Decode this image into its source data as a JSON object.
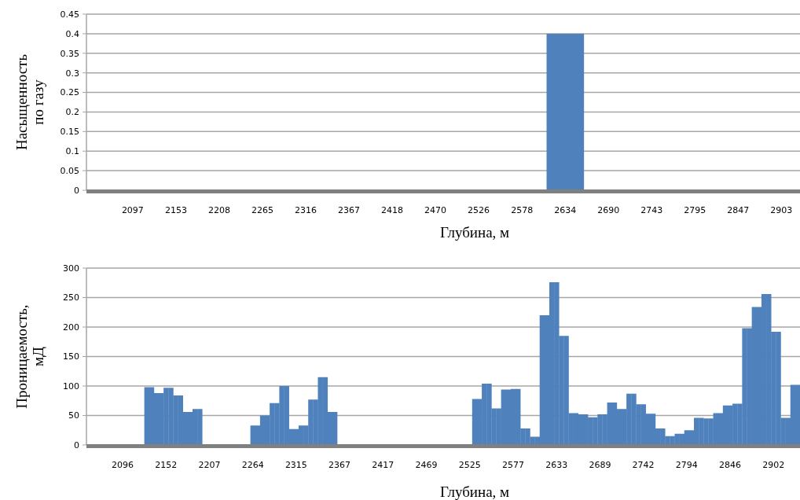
{
  "chart_data": [
    {
      "type": "bar",
      "ylabel": "Насыщенность\nпо газу",
      "xlabel": "Глубина, м",
      "grid": "y",
      "categories": [
        "2097",
        "2153",
        "2208",
        "2265",
        "2316",
        "2367",
        "2418",
        "2470",
        "2526",
        "2578",
        "2634",
        "2690",
        "2743",
        "2795",
        "2847",
        "2903"
      ],
      "values": [
        0,
        0,
        0,
        0,
        0,
        0,
        0,
        0,
        0,
        0,
        0.4,
        0,
        0,
        0,
        0,
        0
      ],
      "color": "#4f81bd",
      "ylim": [
        0,
        0.45
      ],
      "yticks": [
        0,
        0.05,
        0.1,
        0.15,
        0.2,
        0.25,
        0.3,
        0.35,
        0.4,
        0.45
      ]
    },
    {
      "type": "bar",
      "ylabel": "Проницаемость,\nмД",
      "xlabel": "Глубина, м",
      "grid": "y",
      "categories": [
        null,
        null,
        null,
        null,
        null,
        null,
        null,
        "2096",
        null,
        null,
        null,
        null,
        null,
        null,
        null,
        null,
        "2152",
        null,
        null,
        null,
        null,
        null,
        null,
        null,
        null,
        "2207",
        null,
        null,
        null,
        null,
        null,
        null,
        null,
        null,
        "2264",
        null,
        null,
        null,
        null,
        null,
        null,
        null,
        null,
        "2315",
        null,
        null,
        null,
        null,
        null,
        null,
        null,
        null,
        "2367",
        null,
        null,
        null,
        null,
        null,
        null,
        null,
        null,
        "2417",
        null,
        null,
        null,
        null,
        null,
        null,
        null,
        null,
        "2469",
        null,
        null,
        null,
        null,
        null,
        null,
        null,
        null,
        "2525",
        null,
        null,
        null,
        null,
        null,
        null,
        null,
        null,
        "2577",
        null,
        null,
        null,
        null,
        null,
        null,
        null,
        null,
        "2633",
        null,
        null,
        null,
        null,
        null,
        null,
        null,
        null,
        "2689",
        null,
        null,
        null,
        null,
        null,
        null,
        null,
        null,
        "2742",
        null,
        null,
        null,
        null,
        null,
        null,
        null,
        null,
        "2794",
        null,
        null,
        null,
        null,
        null,
        null,
        null,
        null,
        "2846",
        null,
        null,
        null,
        null,
        null,
        null,
        null,
        null,
        "2902",
        null,
        null,
        null,
        null,
        null
      ],
      "values": [
        0,
        0,
        0,
        0,
        0,
        0,
        0,
        0,
        0,
        0,
        0,
        0,
        98,
        98,
        88,
        88,
        97,
        97,
        84,
        84,
        56,
        56,
        61,
        61,
        0,
        0,
        0,
        0,
        0,
        0,
        0,
        0,
        0,
        0,
        33,
        33,
        50,
        50,
        71,
        71,
        100,
        100,
        27,
        27,
        33,
        33,
        77,
        77,
        115,
        115,
        56,
        56,
        0,
        0,
        0,
        0,
        0,
        0,
        0,
        0,
        0,
        0,
        0,
        0,
        0,
        0,
        0,
        0,
        0,
        0,
        0,
        0,
        0,
        0,
        0,
        0,
        0,
        0,
        0,
        0,
        78,
        78,
        104,
        104,
        62,
        62,
        94,
        94,
        95,
        95,
        28,
        28,
        14,
        14,
        220,
        220,
        276,
        276,
        185,
        185,
        54,
        54,
        52,
        52,
        47,
        47,
        52,
        52,
        72,
        72,
        61,
        61,
        87,
        87,
        69,
        69,
        53,
        53,
        28,
        28,
        15,
        15,
        19,
        19,
        25,
        25,
        46,
        46,
        45,
        45,
        54,
        54,
        67,
        67,
        70,
        70,
        198,
        198,
        234,
        234,
        256,
        256,
        192,
        192,
        46,
        46,
        102,
        102
      ],
      "color": "#4f81bd",
      "ylim": [
        0,
        300
      ],
      "yticks": [
        0,
        50,
        100,
        150,
        200,
        250,
        300
      ]
    }
  ]
}
